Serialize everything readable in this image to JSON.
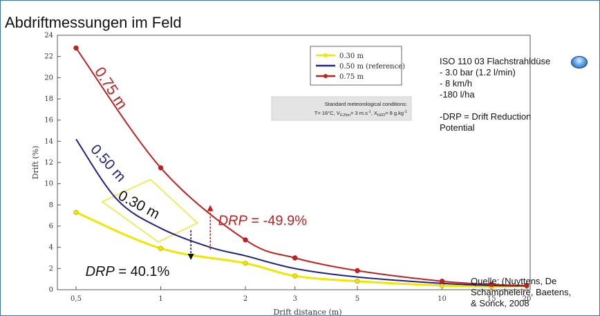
{
  "slide": {
    "title": "Abdriftmessungen im Feld",
    "info_lines": [
      "ISO 110 03 Flachstrahldüse",
      "- 3.0 bar (1.2 l/min)",
      "- 8 km/h",
      "-180 l/ha",
      "",
      "-DRP = Drift Reduction",
      "Potential"
    ],
    "source_lines": [
      "Quelle: (Nuyttens, De",
      "Schampheleire, Baetens,",
      "& Sonck, 2008"
    ],
    "nozzle_icon": "nozzle-icon"
  },
  "chart_data": {
    "type": "line",
    "xlabel": "Drift distance (m)",
    "ylabel": "Drift (%)",
    "x_scale": "log",
    "xlim": [
      0.5,
      20
    ],
    "ylim": [
      0,
      24
    ],
    "x_ticks": [
      0.5,
      1,
      2,
      3,
      5,
      10,
      15,
      20
    ],
    "x_tick_labels": [
      "0,5",
      "1",
      "2",
      "3",
      "5",
      "10",
      "15",
      "20"
    ],
    "y_ticks": [
      0,
      2,
      4,
      6,
      8,
      10,
      12,
      14,
      16,
      18,
      20,
      22,
      24
    ],
    "grid": "horizontal dashed",
    "legend_position": "top-right",
    "legend": [
      "0.30 m",
      "0.50 m (reference)",
      "0.75 m"
    ],
    "conditions_box": {
      "line1": "Standard meteorological conditions:",
      "line2": "T= 16°C, V",
      "line2_sub": "0.25m",
      "line2_mid": "= 3 m.s",
      "line2_sup": "-1",
      "line2_mid2": ", X",
      "line2_sub2": "H2O",
      "line2_end": "= 8 g.kg",
      "line2_sup2": "-1"
    },
    "series": [
      {
        "name": "0.30 m",
        "color": "#f2e600",
        "curve_label": "0.30 m",
        "x": [
          0.5,
          1,
          2,
          3,
          5,
          10,
          15,
          20
        ],
        "y": [
          7.3,
          3.9,
          2.5,
          1.3,
          0.8,
          0.4,
          0.3,
          0.35
        ]
      },
      {
        "name": "0.50 m (reference)",
        "color": "#1f1f8a",
        "curve_label": "0.50 m",
        "x": [
          0.5,
          0.7,
          1,
          1.5,
          2,
          3,
          5,
          10,
          15,
          20
        ],
        "y": [
          14.2,
          8.5,
          5.8,
          4.0,
          3.2,
          2.0,
          1.2,
          0.6,
          0.4,
          0.35
        ]
      },
      {
        "name": "0.75 m",
        "color": "#c21f1f",
        "curve_label": "0.75 m",
        "x": [
          0.5,
          1,
          2,
          3,
          5,
          10,
          15,
          20
        ],
        "y": [
          22.8,
          11.5,
          4.7,
          3.0,
          1.8,
          0.8,
          0.5,
          0.4
        ]
      }
    ],
    "annotations": [
      {
        "text_prefix": "DRP",
        "text_value": " = -49.9%",
        "color": "#c21f1f"
      },
      {
        "text_prefix": "DRP",
        "text_value": " = 40.1%",
        "color": "#111111"
      }
    ]
  }
}
